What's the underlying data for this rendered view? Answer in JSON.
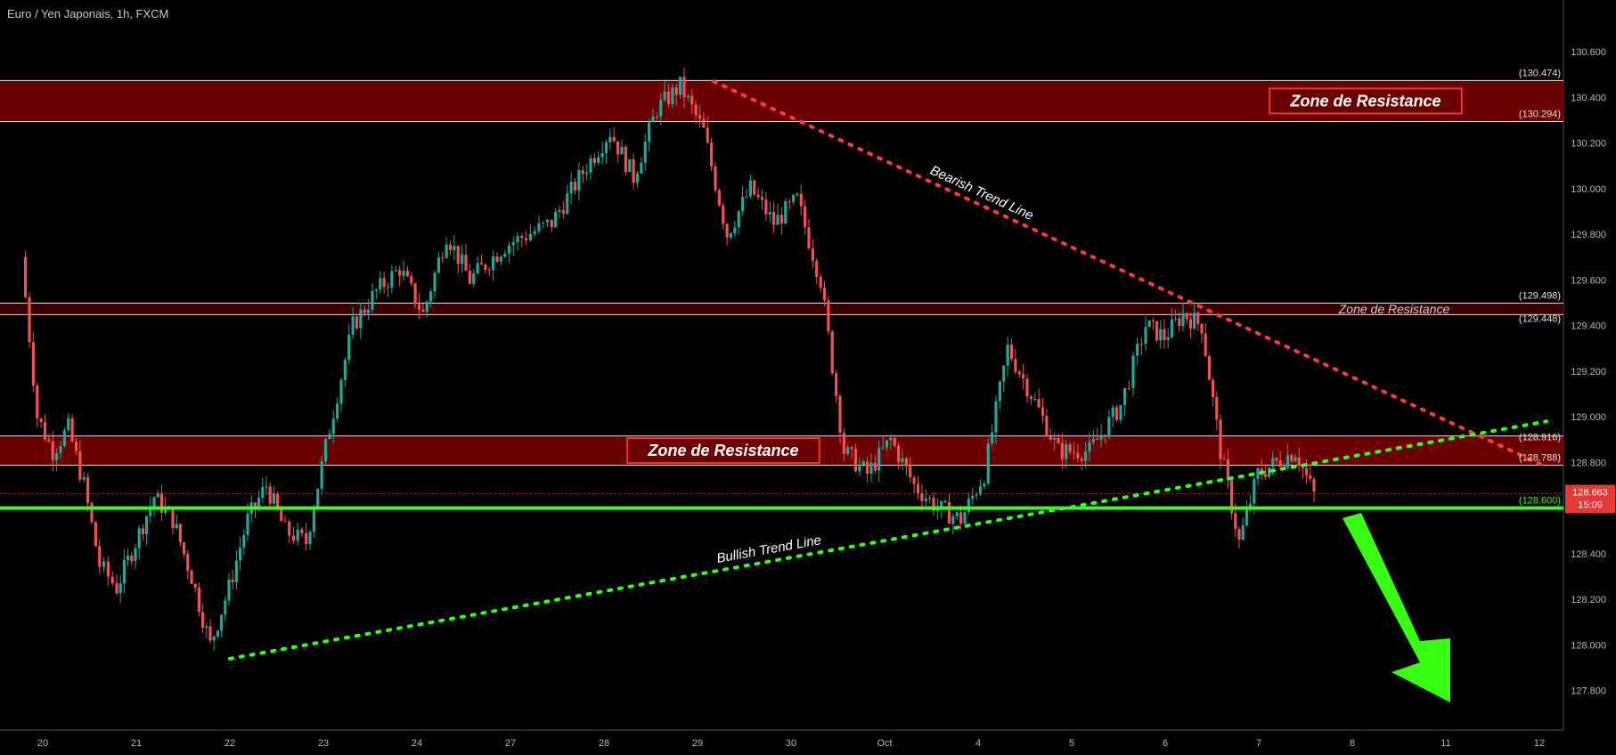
{
  "chart_data": {
    "type": "candlestick",
    "title": "Euro / Yen Japonais, 1h, FXCM",
    "ylim": [
      127.67,
      130.69
    ],
    "x_axis_ticks": [
      "20",
      "21",
      "22",
      "23",
      "24",
      "27",
      "28",
      "29",
      "30",
      "Oct",
      "4",
      "5",
      "6",
      "7",
      "8",
      "11",
      "12"
    ],
    "y_axis_ticks": [
      "130.600",
      "130.400",
      "130.200",
      "130.000",
      "129.800",
      "129.600",
      "129.400",
      "129.200",
      "129.000",
      "128.800",
      "128.600",
      "128.400",
      "128.200",
      "128.000",
      "127.800"
    ],
    "price_path": [
      [
        "20",
        129.7
      ],
      [
        "20",
        129.0
      ],
      [
        "20",
        128.85
      ],
      [
        "20",
        128.95
      ],
      [
        "20",
        128.7
      ],
      [
        "20",
        128.35
      ],
      [
        "21",
        128.25
      ],
      [
        "21",
        128.45
      ],
      [
        "21",
        128.65
      ],
      [
        "21",
        128.55
      ],
      [
        "21",
        128.3
      ],
      [
        "22",
        128.0
      ],
      [
        "22",
        128.25
      ],
      [
        "22",
        128.55
      ],
      [
        "22",
        128.7
      ],
      [
        "22",
        128.5
      ],
      [
        "23",
        128.45
      ],
      [
        "23",
        128.95
      ],
      [
        "23",
        129.4
      ],
      [
        "23",
        129.55
      ],
      [
        "24",
        129.65
      ],
      [
        "24",
        129.45
      ],
      [
        "24",
        129.8
      ],
      [
        "24",
        129.6
      ],
      [
        "27",
        129.75
      ],
      [
        "27",
        129.85
      ],
      [
        "28",
        130.1
      ],
      [
        "28",
        130.25
      ],
      [
        "28",
        130.05
      ],
      [
        "28",
        130.35
      ],
      [
        "29",
        130.45
      ],
      [
        "29",
        130.25
      ],
      [
        "29",
        129.8
      ],
      [
        "29",
        130.0
      ],
      [
        "30",
        129.85
      ],
      [
        "30",
        129.95
      ],
      [
        "30",
        129.6
      ],
      [
        "30",
        128.85
      ],
      [
        "Oct",
        128.75
      ],
      [
        "Oct",
        128.9
      ],
      [
        "Oct",
        128.7
      ],
      [
        "Oct",
        128.6
      ],
      [
        "4",
        128.55
      ],
      [
        "4",
        128.75
      ],
      [
        "4",
        129.3
      ],
      [
        "4",
        129.1
      ],
      [
        "5",
        128.85
      ],
      [
        "5",
        128.85
      ],
      [
        "5",
        129.05
      ],
      [
        "6",
        129.4
      ],
      [
        "6",
        129.35
      ],
      [
        "6",
        129.45
      ],
      [
        "6",
        129.4
      ],
      [
        "6",
        128.85
      ],
      [
        "7",
        128.45
      ],
      [
        "7",
        128.75
      ],
      [
        "7",
        128.8
      ],
      [
        "7",
        128.85
      ],
      [
        "7",
        128.66
      ]
    ],
    "horizontal_levels": [
      {
        "label": "(130.474)",
        "value": 130.474
      },
      {
        "label": "(130.294)",
        "value": 130.294
      },
      {
        "label": "(129.498)",
        "value": 129.498
      },
      {
        "label": "(129.448)",
        "value": 129.448
      },
      {
        "label": "(128.916)",
        "value": 128.916
      },
      {
        "label": "(128.788)",
        "value": 128.788
      },
      {
        "label": "(128.600)",
        "value": 128.6
      }
    ],
    "zones": [
      {
        "name": "Zone de Resistance",
        "top": 130.474,
        "bottom": 130.294
      },
      {
        "name": "Zone de Resistance",
        "top": 129.498,
        "bottom": 129.448
      },
      {
        "name": "Zone de Resistance",
        "top": 128.916,
        "bottom": 128.788
      }
    ],
    "support_level": 128.6,
    "current_price": {
      "value": "128.663",
      "countdown": "15:09"
    },
    "trend_lines": [
      {
        "name": "Bearish Trend Line",
        "from": [
          "29",
          130.47
        ],
        "to": [
          "12",
          128.78
        ]
      },
      {
        "name": "Bullish Trend Line",
        "from": [
          "22",
          127.94
        ],
        "to": [
          "12",
          128.98
        ]
      }
    ],
    "forecast_arrow": "down",
    "grid": false,
    "colors": {
      "background": "#000000",
      "up": "#26a69a",
      "down": "#ef5350",
      "zone_fill": "#6b0000",
      "zone_border": "#ffffff",
      "label_border": "#e53935",
      "bearish_line": "#ff3b3b",
      "bullish_line": "#39ff14",
      "support_line": "#39ff14",
      "price_badge": "#e53935",
      "axis_text": "#b2b5be",
      "axis_border": "#555555"
    }
  }
}
